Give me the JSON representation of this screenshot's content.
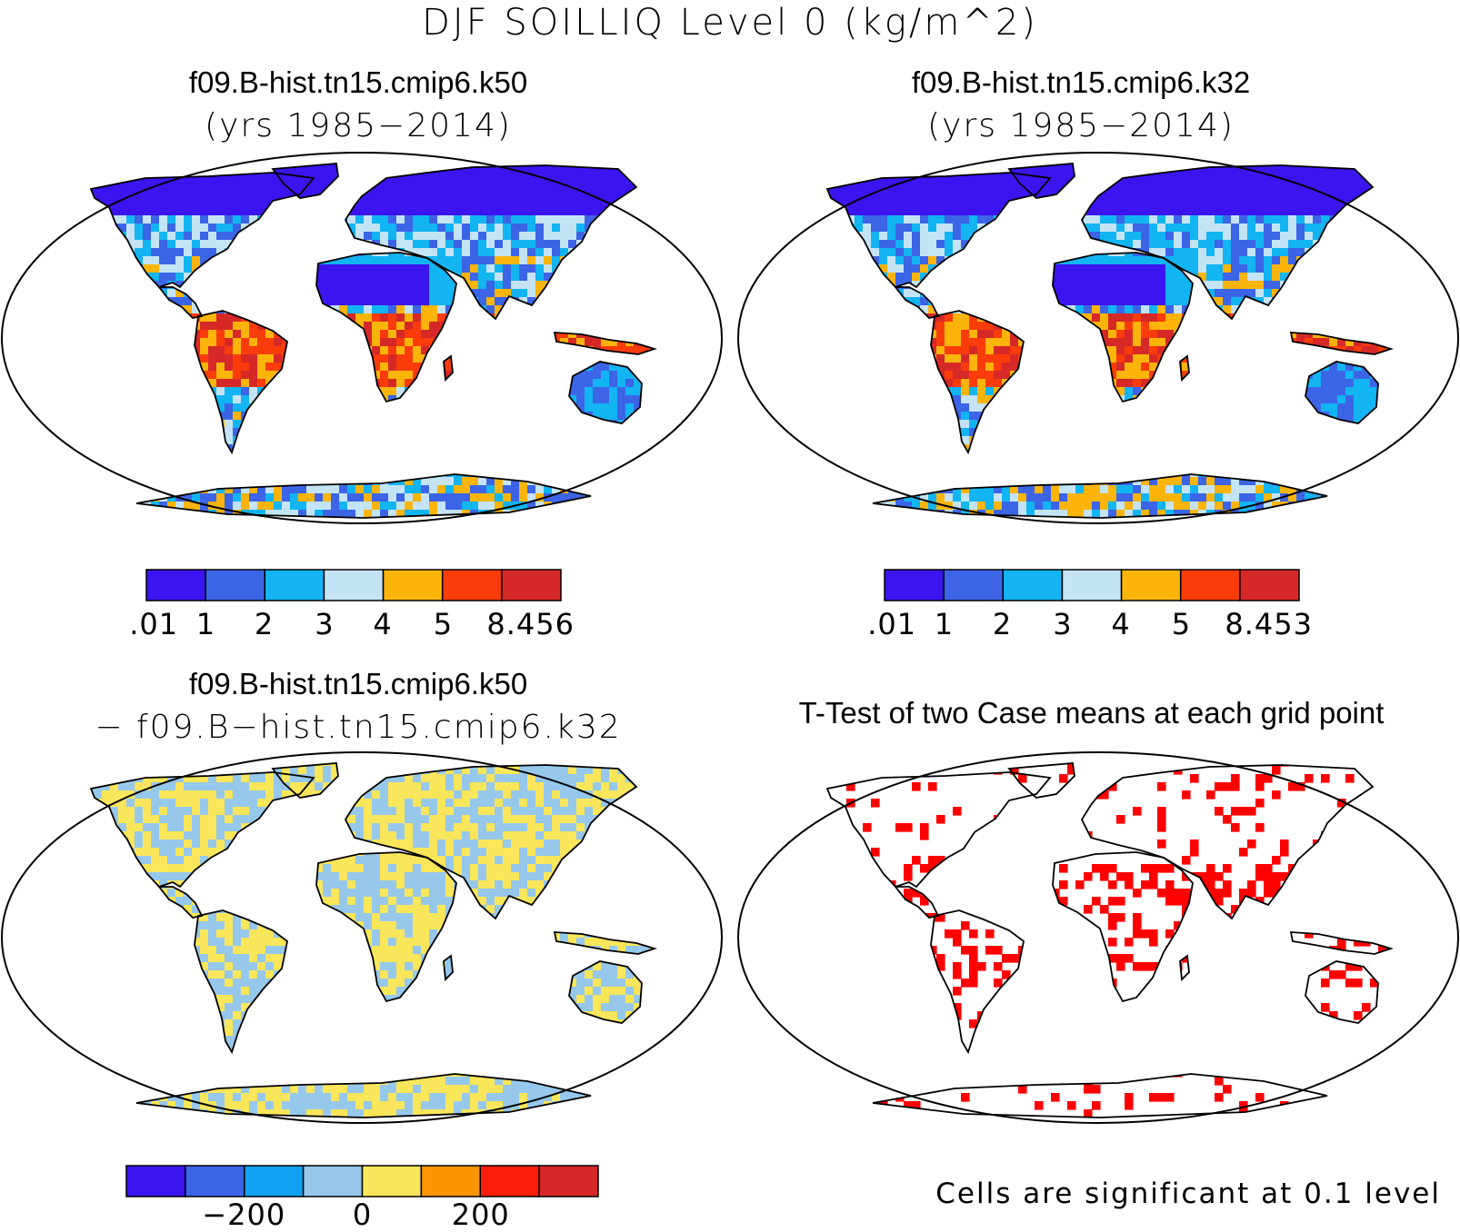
{
  "figure": {
    "title": "DJF SOILLIQ Level 0 (kg/m^2)"
  },
  "panels": [
    {
      "id": "k50",
      "title_line1": "f09.B-hist.tn15.cmip6.k50",
      "title_line2": "(yrs 1985−2014)",
      "colorbar": {
        "colors": [
          "#3b14f0",
          "#3c64e6",
          "#12b4f2",
          "#c4e4f5",
          "#fab40a",
          "#fa3c0a",
          "#d72828"
        ],
        "labels": [
          ".01",
          "1",
          "2",
          "3",
          "4",
          "5",
          "8.456"
        ]
      }
    },
    {
      "id": "k32",
      "title_line1": "f09.B-hist.tn15.cmip6.k32",
      "title_line2": "(yrs 1985−2014)",
      "colorbar": {
        "colors": [
          "#3b14f0",
          "#3c64e6",
          "#12b4f2",
          "#c4e4f5",
          "#fab40a",
          "#fa3c0a",
          "#d72828"
        ],
        "labels": [
          ".01",
          "1",
          "2",
          "3",
          "4",
          "5",
          "8.453"
        ]
      }
    },
    {
      "id": "diff",
      "title_line1": "f09.B-hist.tn15.cmip6.k50",
      "title_line2": "− f09.B−hist.tn15.cmip6.k32",
      "colorbar": {
        "colors": [
          "#3b14f0",
          "#3c64e6",
          "#12a0f2",
          "#96c8ec",
          "#fae65a",
          "#fa9600",
          "#fa1e0a",
          "#d72828"
        ],
        "labels": [
          "−200",
          "0",
          "200"
        ]
      }
    },
    {
      "id": "ttest",
      "title_line1": "T-Test of two Case means at each grid point",
      "note": "Cells are significant at 0.1 level",
      "significant_color": "#ff0000"
    }
  ],
  "map_colors": {
    "ocean": "#ffffff",
    "coastline": "#000000"
  }
}
